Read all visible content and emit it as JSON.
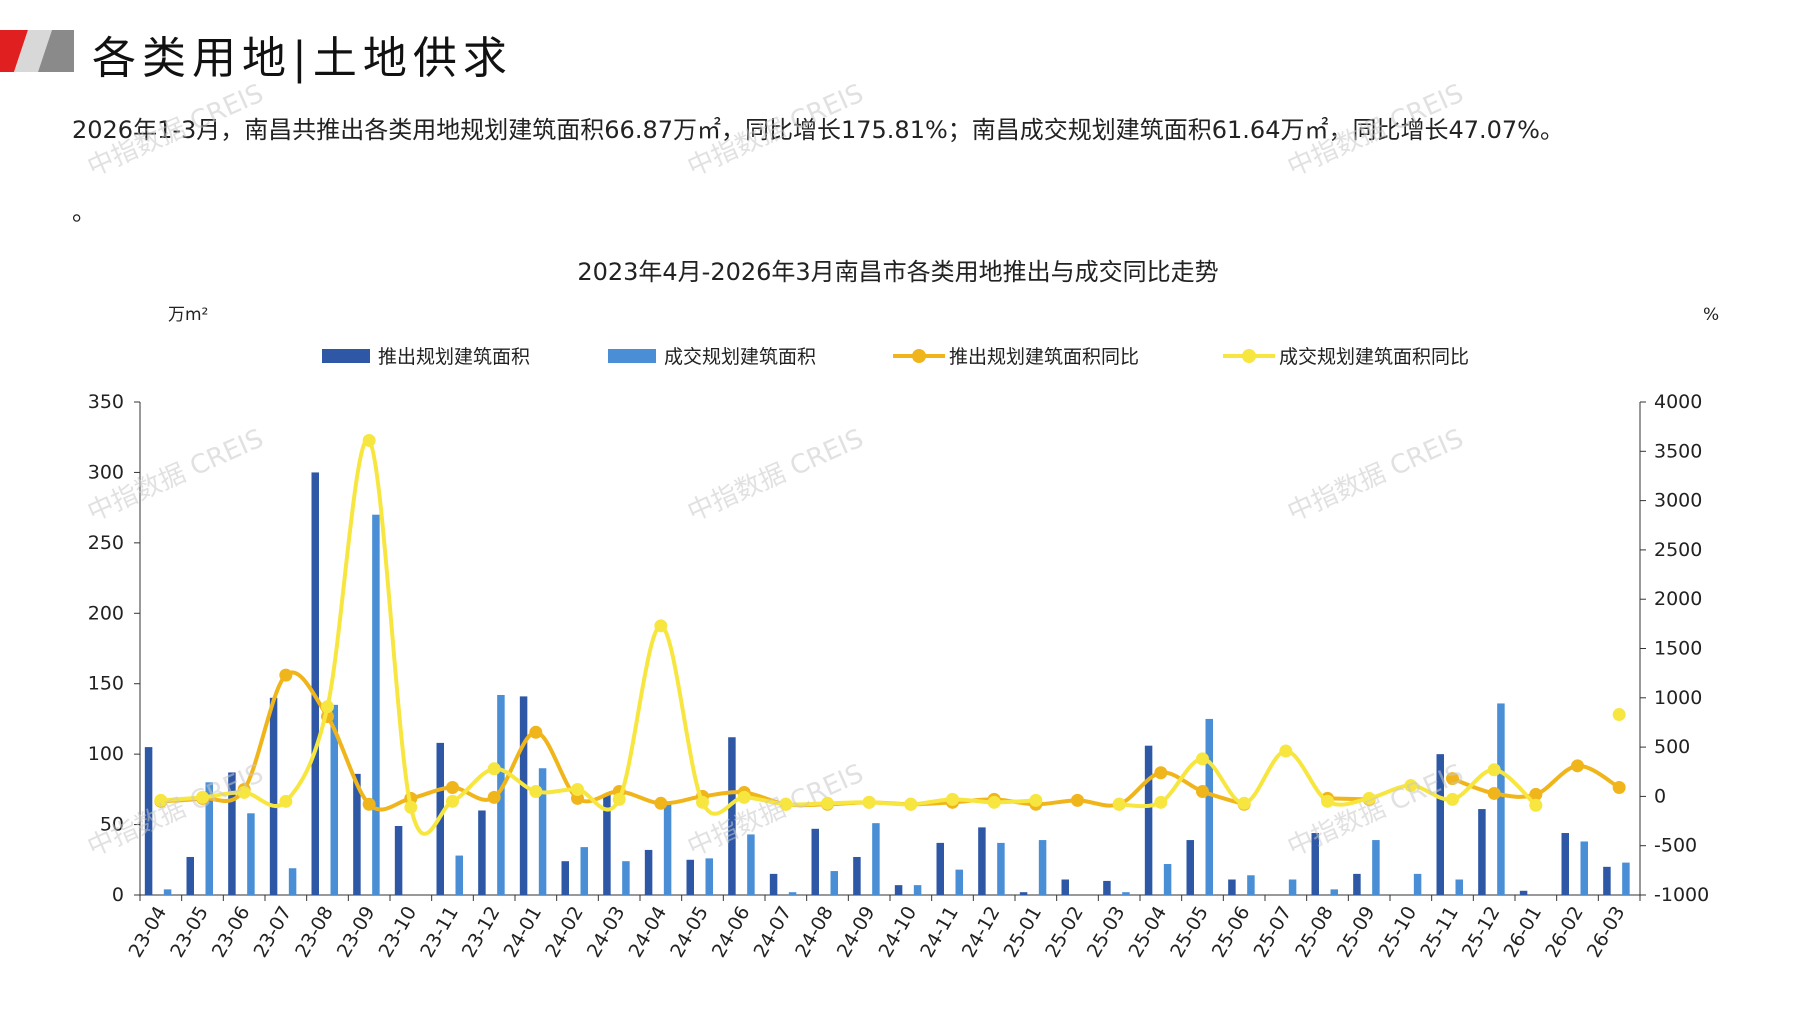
{
  "header": {
    "title": "各类用地|土地供求"
  },
  "summary": {
    "text": "2026年1-3月，南昌共推出各类用地规划建筑面积66.87万㎡，同比增长175.81%；南昌成交规划建筑面积61.64万㎡，同比增长47.07%。",
    "tail": "。"
  },
  "watermark": "中指数据 CREIS",
  "colors": {
    "bar_supply": "#2E58A6",
    "bar_deal": "#4A8FD6",
    "line_supply_yoy": "#F0B51A",
    "line_deal_yoy": "#F8E640",
    "logo_red": "#E02020",
    "logo_grey": "#8A8A8A"
  },
  "chart_data": {
    "type": "bar",
    "title": "2023年4月-2026年3月南昌市各类用地推出与成交同比走势",
    "y_left_unit": "万m²",
    "y_right_unit": "%",
    "ylim_left": [
      0,
      350
    ],
    "ylim_right": [
      -1000,
      4000
    ],
    "yticks_left": [
      "0",
      "50",
      "100",
      "150",
      "200",
      "250",
      "300",
      "350"
    ],
    "yticks_right": [
      "-1000",
      "-500",
      "0",
      "500",
      "1000",
      "1500",
      "2000",
      "2500",
      "3000",
      "3500",
      "4000"
    ],
    "legend_position": "top",
    "categories": [
      "23-04",
      "23-05",
      "23-06",
      "23-07",
      "23-08",
      "23-09",
      "23-10",
      "23-11",
      "23-12",
      "24-01",
      "24-02",
      "24-03",
      "24-04",
      "24-05",
      "24-06",
      "24-07",
      "24-08",
      "24-09",
      "24-10",
      "24-11",
      "24-12",
      "25-01",
      "25-02",
      "25-03",
      "25-04",
      "25-05",
      "25-06",
      "25-07",
      "25-08",
      "25-09",
      "25-10",
      "25-11",
      "25-12",
      "26-01",
      "26-02",
      "26-03"
    ],
    "series": [
      {
        "name": "推出规划建筑面积",
        "type": "bar",
        "axis": "left",
        "values": [
          105,
          27,
          87,
          140,
          300,
          86,
          49,
          108,
          60,
          141,
          24,
          71,
          32,
          25,
          112,
          15,
          47,
          27,
          7,
          37,
          48,
          2,
          11,
          10,
          106,
          39,
          11,
          0,
          44,
          15,
          0,
          100,
          61,
          3,
          44,
          20
        ]
      },
      {
        "name": "成交规划建筑面积",
        "type": "bar",
        "axis": "left",
        "values": [
          4,
          80,
          58,
          19,
          135,
          270,
          0,
          28,
          142,
          90,
          34,
          24,
          66,
          26,
          43,
          2,
          17,
          51,
          7,
          18,
          37,
          39,
          0,
          2,
          22,
          125,
          14,
          11,
          4,
          39,
          15,
          11,
          136,
          0,
          38,
          23
        ]
      },
      {
        "name": "推出规划建筑面积同比",
        "type": "line",
        "axis": "right",
        "values": [
          -50,
          -20,
          70,
          1230,
          810,
          -80,
          -20,
          90,
          -10,
          650,
          -20,
          50,
          -70,
          0,
          40,
          -80,
          -80,
          -60,
          -80,
          -60,
          -30,
          -80,
          -40,
          -80,
          240,
          50,
          -80,
          null,
          -20,
          -30,
          null,
          180,
          30,
          20,
          310,
          90
        ]
      },
      {
        "name": "成交规划建筑面积同比",
        "type": "line",
        "axis": "right",
        "values": [
          -40,
          -10,
          40,
          -50,
          910,
          3610,
          -110,
          -50,
          280,
          50,
          70,
          -30,
          1730,
          -60,
          -10,
          -80,
          -70,
          -60,
          -80,
          -30,
          -60,
          -40,
          null,
          -80,
          -60,
          380,
          -70,
          460,
          -50,
          -20,
          110,
          -30,
          270,
          -90,
          null,
          830
        ]
      }
    ]
  }
}
